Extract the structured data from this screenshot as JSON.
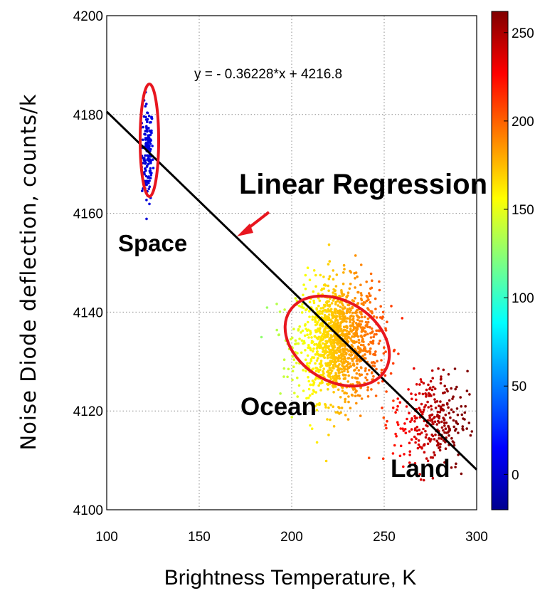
{
  "chart_data": {
    "type": "scatter",
    "xlabel": "Brightness Temperature, K",
    "ylabel": "Noise Diode deflection, counts/k",
    "xlim": [
      100,
      300
    ],
    "ylim": [
      4100,
      4200
    ],
    "xticks": [
      "100",
      "150",
      "200",
      "250",
      "300"
    ],
    "yticks": [
      "4100",
      "4120",
      "4140",
      "4160",
      "4180",
      "4200"
    ],
    "grid": true,
    "colorbar": {
      "ticks": [
        "0",
        "50",
        "100",
        "150",
        "200",
        "250"
      ],
      "range": [
        -20,
        262
      ],
      "colormap": "jet"
    },
    "regression": {
      "equation": "y = - 0.36228*x + 4216.8",
      "slope": -0.36228,
      "intercept": 4216.8
    },
    "clusters": [
      {
        "label": "Space",
        "x_center": 122,
        "x_spread": 1.5,
        "y_center": 4172,
        "y_spread": 5,
        "color_value": 5,
        "count": 150
      },
      {
        "label": "Ocean",
        "x_center": 225,
        "x_spread": 11,
        "y_center": 4134,
        "y_spread": 6,
        "color_value": 175,
        "count": 1300
      },
      {
        "label": "Land",
        "x_center": 275,
        "x_spread": 10,
        "y_center": 4118,
        "y_spread": 5,
        "color_value": 245,
        "count": 300
      }
    ],
    "annotations": {
      "space": "Space",
      "ocean": "Ocean",
      "land": "Land",
      "regression": "Linear Regression"
    }
  }
}
